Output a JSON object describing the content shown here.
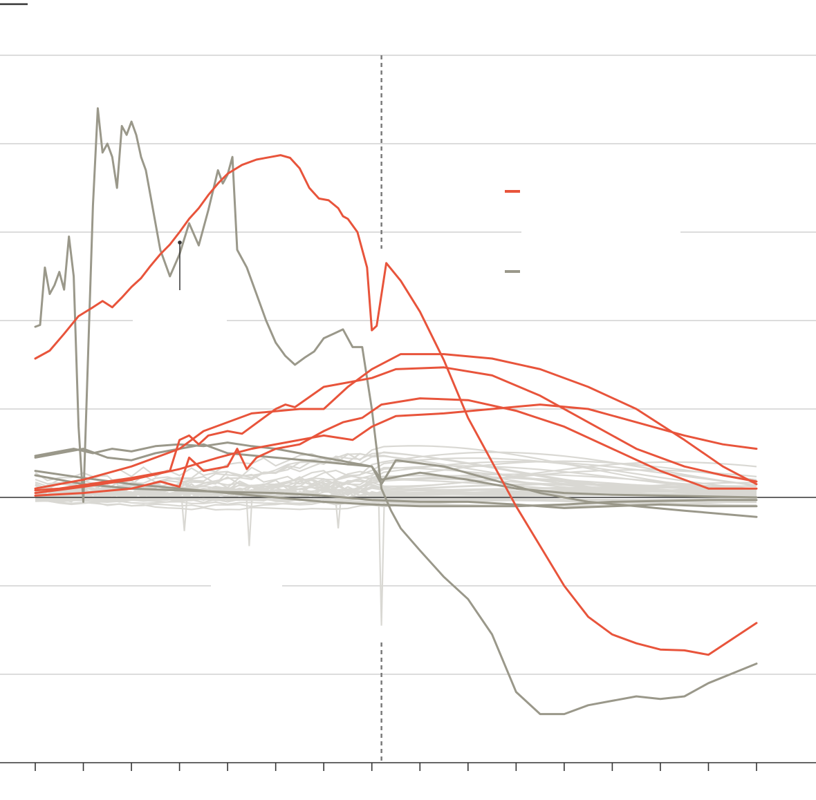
{
  "chart_data": {
    "type": "line",
    "title": "",
    "xlabel": "",
    "ylabel": "",
    "x_range": [
      0,
      15
    ],
    "y_range": [
      -3.0,
      5.0
    ],
    "y_gridlines": [
      -2,
      -1,
      1,
      2,
      3,
      4,
      5
    ],
    "zero_line": 0,
    "divider_x": 7.2,
    "colors": {
      "highlight": "#e8543b",
      "secondary": "#9a988a",
      "background_lines": "#d9d8d3",
      "grid": "#c8c8c8",
      "zero": "#333333",
      "divider": "#7a7a7a"
    },
    "legend": {
      "placement": "right-center",
      "entries": [
        {
          "style": "highlight",
          "label": ""
        },
        {
          "style": "secondary",
          "label": ""
        }
      ]
    },
    "series": [
      {
        "group": "highlight",
        "points": [
          [
            0,
            1.57
          ],
          [
            0.3,
            1.66
          ],
          [
            0.6,
            1.85
          ],
          [
            0.9,
            2.05
          ],
          [
            1.2,
            2.15
          ],
          [
            1.4,
            2.22
          ],
          [
            1.6,
            2.15
          ],
          [
            1.8,
            2.26
          ],
          [
            2.0,
            2.38
          ],
          [
            2.2,
            2.48
          ],
          [
            2.4,
            2.62
          ],
          [
            2.6,
            2.75
          ],
          [
            2.8,
            2.86
          ],
          [
            3.0,
            3.0
          ],
          [
            3.2,
            3.15
          ],
          [
            3.4,
            3.27
          ],
          [
            3.6,
            3.42
          ],
          [
            3.8,
            3.55
          ],
          [
            4.0,
            3.66
          ],
          [
            4.3,
            3.76
          ],
          [
            4.6,
            3.82
          ],
          [
            4.9,
            3.85
          ],
          [
            5.1,
            3.87
          ],
          [
            5.3,
            3.84
          ],
          [
            5.5,
            3.72
          ],
          [
            5.7,
            3.5
          ],
          [
            5.9,
            3.38
          ],
          [
            6.1,
            3.36
          ],
          [
            6.3,
            3.27
          ],
          [
            6.4,
            3.18
          ],
          [
            6.5,
            3.15
          ],
          [
            6.7,
            3.0
          ],
          [
            6.9,
            2.6
          ],
          [
            7.0,
            1.89
          ],
          [
            7.1,
            1.94
          ],
          [
            7.3,
            2.65
          ],
          [
            7.6,
            2.45
          ],
          [
            8.0,
            2.1
          ],
          [
            8.5,
            1.55
          ],
          [
            9.0,
            0.9
          ],
          [
            9.5,
            0.4
          ],
          [
            10.0,
            -0.1
          ],
          [
            10.5,
            -0.55
          ],
          [
            11.0,
            -1.0
          ],
          [
            11.5,
            -1.35
          ],
          [
            12.0,
            -1.55
          ],
          [
            12.5,
            -1.65
          ],
          [
            13.0,
            -1.72
          ],
          [
            13.5,
            -1.73
          ],
          [
            14.0,
            -1.78
          ],
          [
            15.0,
            -1.42
          ]
        ]
      },
      {
        "group": "highlight",
        "points": [
          [
            0,
            0.1
          ],
          [
            1,
            0.2
          ],
          [
            2,
            0.35
          ],
          [
            3,
            0.55
          ],
          [
            3.5,
            0.75
          ],
          [
            4.5,
            0.95
          ],
          [
            5.5,
            1.0
          ],
          [
            6.0,
            1.0
          ],
          [
            6.5,
            1.25
          ],
          [
            7.0,
            1.45
          ],
          [
            7.6,
            1.62
          ],
          [
            8.5,
            1.62
          ],
          [
            9.5,
            1.57
          ],
          [
            10.5,
            1.45
          ],
          [
            11.5,
            1.25
          ],
          [
            12.5,
            1.0
          ],
          [
            13.5,
            0.65
          ],
          [
            14.3,
            0.35
          ],
          [
            15.0,
            0.15
          ]
        ]
      },
      {
        "group": "highlight",
        "points": [
          [
            0,
            0.05
          ],
          [
            1,
            0.12
          ],
          [
            2,
            0.2
          ],
          [
            3,
            0.32
          ],
          [
            3.8,
            0.45
          ],
          [
            4.5,
            0.55
          ],
          [
            5.2,
            0.62
          ],
          [
            6.0,
            0.7
          ],
          [
            6.6,
            0.65
          ],
          [
            7.0,
            0.8
          ],
          [
            7.5,
            0.92
          ],
          [
            8.5,
            0.95
          ],
          [
            9.5,
            1.0
          ],
          [
            10.5,
            1.05
          ],
          [
            11.5,
            1.0
          ],
          [
            12.5,
            0.85
          ],
          [
            13.5,
            0.7
          ],
          [
            14.3,
            0.6
          ],
          [
            15.0,
            0.55
          ]
        ]
      },
      {
        "group": "highlight",
        "points": [
          [
            0,
            0.08
          ],
          [
            0.5,
            0.1
          ],
          [
            1,
            0.14
          ],
          [
            2,
            0.22
          ],
          [
            2.8,
            0.3
          ],
          [
            3.0,
            0.65
          ],
          [
            3.2,
            0.7
          ],
          [
            3.4,
            0.6
          ],
          [
            3.6,
            0.7
          ],
          [
            4.0,
            0.75
          ],
          [
            4.3,
            0.72
          ],
          [
            4.5,
            0.8
          ],
          [
            5.0,
            1.0
          ],
          [
            5.2,
            1.05
          ],
          [
            5.4,
            1.02
          ],
          [
            6.0,
            1.25
          ],
          [
            6.5,
            1.3
          ],
          [
            7.0,
            1.35
          ],
          [
            7.5,
            1.45
          ],
          [
            8.5,
            1.47
          ],
          [
            9.5,
            1.38
          ],
          [
            10.5,
            1.15
          ],
          [
            11.5,
            0.85
          ],
          [
            12.5,
            0.55
          ],
          [
            13.5,
            0.35
          ],
          [
            14.3,
            0.25
          ],
          [
            15.0,
            0.18
          ]
        ]
      },
      {
        "group": "highlight",
        "points": [
          [
            0,
            0.02
          ],
          [
            1,
            0.05
          ],
          [
            2,
            0.1
          ],
          [
            2.6,
            0.18
          ],
          [
            3.0,
            0.12
          ],
          [
            3.2,
            0.45
          ],
          [
            3.5,
            0.3
          ],
          [
            4.0,
            0.35
          ],
          [
            4.2,
            0.55
          ],
          [
            4.4,
            0.32
          ],
          [
            4.6,
            0.45
          ],
          [
            5.0,
            0.55
          ],
          [
            5.5,
            0.6
          ],
          [
            6.0,
            0.75
          ],
          [
            6.4,
            0.85
          ],
          [
            6.8,
            0.9
          ],
          [
            7.2,
            1.05
          ],
          [
            8.0,
            1.12
          ],
          [
            9.0,
            1.1
          ],
          [
            10.0,
            0.98
          ],
          [
            11.0,
            0.8
          ],
          [
            12.0,
            0.55
          ],
          [
            13.0,
            0.3
          ],
          [
            14.0,
            0.1
          ],
          [
            15.0,
            0.1
          ]
        ]
      },
      {
        "group": "secondary",
        "points": [
          [
            0,
            1.93
          ],
          [
            0.1,
            1.95
          ],
          [
            0.2,
            2.6
          ],
          [
            0.3,
            2.3
          ],
          [
            0.4,
            2.4
          ],
          [
            0.5,
            2.55
          ],
          [
            0.6,
            2.35
          ],
          [
            0.7,
            2.95
          ],
          [
            0.8,
            2.5
          ],
          [
            0.9,
            0.8
          ],
          [
            1.0,
            -0.05
          ],
          [
            1.2,
            3.3
          ],
          [
            1.3,
            4.4
          ],
          [
            1.4,
            3.9
          ],
          [
            1.5,
            4.0
          ],
          [
            1.6,
            3.85
          ],
          [
            1.7,
            3.5
          ],
          [
            1.8,
            4.2
          ],
          [
            1.9,
            4.1
          ],
          [
            2.0,
            4.25
          ],
          [
            2.1,
            4.1
          ],
          [
            2.2,
            3.85
          ],
          [
            2.3,
            3.7
          ],
          [
            2.4,
            3.4
          ],
          [
            2.6,
            2.8
          ],
          [
            2.8,
            2.5
          ],
          [
            3.0,
            2.75
          ],
          [
            3.2,
            3.1
          ],
          [
            3.4,
            2.85
          ],
          [
            3.6,
            3.25
          ],
          [
            3.8,
            3.7
          ],
          [
            3.9,
            3.55
          ],
          [
            4.0,
            3.65
          ],
          [
            4.1,
            3.85
          ],
          [
            4.2,
            2.8
          ],
          [
            4.4,
            2.6
          ],
          [
            4.6,
            2.3
          ],
          [
            4.8,
            2.0
          ],
          [
            5.0,
            1.75
          ],
          [
            5.2,
            1.6
          ],
          [
            5.4,
            1.5
          ],
          [
            5.6,
            1.58
          ],
          [
            5.8,
            1.65
          ],
          [
            6.0,
            1.8
          ],
          [
            6.2,
            1.85
          ],
          [
            6.4,
            1.9
          ],
          [
            6.6,
            1.7
          ],
          [
            6.8,
            1.7
          ],
          [
            7.0,
            1.0
          ],
          [
            7.2,
            0.1
          ],
          [
            7.4,
            -0.15
          ],
          [
            7.6,
            -0.35
          ],
          [
            8.0,
            -0.6
          ],
          [
            8.5,
            -0.9
          ],
          [
            9.0,
            -1.15
          ],
          [
            9.5,
            -1.55
          ],
          [
            10.0,
            -2.2
          ],
          [
            10.5,
            -2.45
          ],
          [
            11.0,
            -2.45
          ],
          [
            11.5,
            -2.35
          ],
          [
            12.0,
            -2.3
          ],
          [
            12.5,
            -2.25
          ],
          [
            13.0,
            -2.28
          ],
          [
            13.5,
            -2.25
          ],
          [
            14.0,
            -2.1
          ],
          [
            15.0,
            -1.88
          ]
        ]
      },
      {
        "group": "secondary",
        "points": [
          [
            0,
            0.47
          ],
          [
            0.3,
            0.5
          ],
          [
            0.8,
            0.55
          ],
          [
            1.2,
            0.5
          ],
          [
            1.6,
            0.55
          ],
          [
            2.0,
            0.52
          ],
          [
            2.5,
            0.58
          ],
          [
            3.0,
            0.6
          ],
          [
            3.5,
            0.58
          ],
          [
            4.0,
            0.62
          ],
          [
            4.5,
            0.58
          ],
          [
            5.0,
            0.55
          ],
          [
            5.5,
            0.5
          ],
          [
            6.0,
            0.45
          ],
          [
            6.5,
            0.4
          ],
          [
            7.0,
            0.35
          ],
          [
            7.2,
            0.15
          ],
          [
            7.5,
            0.42
          ],
          [
            8.5,
            0.35
          ],
          [
            9.5,
            0.2
          ],
          [
            10.5,
            0.05
          ],
          [
            11.5,
            -0.05
          ],
          [
            12.5,
            -0.1
          ],
          [
            13.5,
            -0.15
          ],
          [
            15.0,
            -0.22
          ]
        ]
      },
      {
        "group": "secondary",
        "points": [
          [
            0,
            0.25
          ],
          [
            0.5,
            0.2
          ],
          [
            1,
            0.15
          ],
          [
            2,
            0.1
          ],
          [
            3,
            0.08
          ],
          [
            4,
            0.06
          ],
          [
            5,
            0.05
          ],
          [
            6,
            0.02
          ],
          [
            7,
            -0.03
          ],
          [
            8,
            -0.05
          ],
          [
            9,
            -0.05
          ],
          [
            10,
            -0.08
          ],
          [
            11,
            -0.12
          ],
          [
            12,
            -0.1
          ],
          [
            13,
            -0.08
          ],
          [
            14,
            -0.1
          ],
          [
            15,
            -0.1
          ]
        ]
      },
      {
        "group": "secondary",
        "points": [
          [
            0,
            0.3
          ],
          [
            1,
            0.22
          ],
          [
            2,
            0.15
          ],
          [
            3,
            0.1
          ],
          [
            4,
            0.05
          ],
          [
            5,
            0.0
          ],
          [
            6,
            -0.05
          ],
          [
            7,
            -0.08
          ],
          [
            8,
            -0.1
          ],
          [
            9,
            -0.1
          ],
          [
            10,
            -0.1
          ],
          [
            11,
            -0.08
          ],
          [
            12,
            -0.05
          ],
          [
            13,
            -0.04
          ],
          [
            14,
            -0.03
          ],
          [
            15,
            -0.03
          ]
        ]
      },
      {
        "group": "secondary",
        "points": [
          [
            0,
            0.45
          ],
          [
            0.5,
            0.5
          ],
          [
            1,
            0.55
          ],
          [
            1.5,
            0.45
          ],
          [
            2,
            0.42
          ],
          [
            2.5,
            0.5
          ],
          [
            3,
            0.55
          ],
          [
            3.5,
            0.6
          ],
          [
            4,
            0.5
          ],
          [
            5,
            0.45
          ],
          [
            6,
            0.4
          ],
          [
            7,
            0.35
          ],
          [
            7.2,
            0.2
          ],
          [
            8,
            0.28
          ],
          [
            9,
            0.2
          ],
          [
            10,
            0.1
          ],
          [
            11,
            0.05
          ],
          [
            12,
            0.03
          ],
          [
            13,
            0.02
          ],
          [
            15,
            0.0
          ]
        ]
      }
    ],
    "background_lines": {
      "count": 40,
      "group": "background_lines"
    }
  }
}
